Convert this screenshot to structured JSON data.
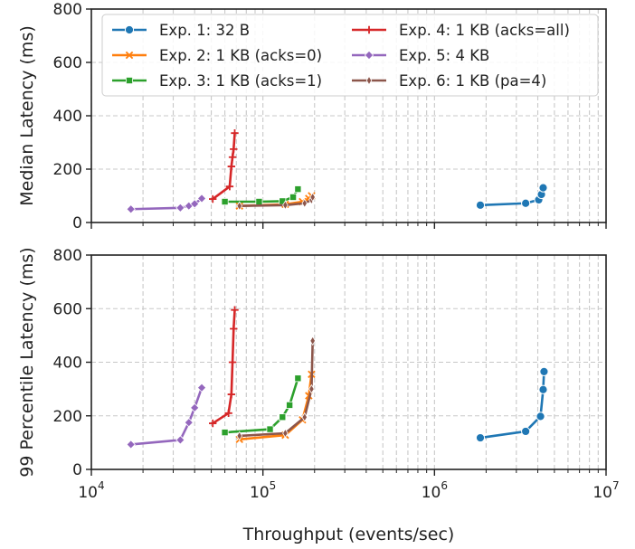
{
  "chart_data": {
    "type": "line",
    "xscale": "log",
    "xlim": [
      10000,
      10000000
    ],
    "xticks": [
      {
        "base": "10",
        "exp": "4"
      },
      {
        "base": "10",
        "exp": "5"
      },
      {
        "base": "10",
        "exp": "6"
      },
      {
        "base": "10",
        "exp": "7"
      }
    ],
    "xlabel": "Throughput (events/sec)",
    "grid": true,
    "legend": {
      "location": "top",
      "columns": 2
    },
    "series": [
      {
        "name": "Exp. 1: 32 B",
        "color": "#1f77b4",
        "marker": "circle"
      },
      {
        "name": "Exp. 2: 1 KB (acks=0)",
        "color": "#ff7f0e",
        "marker": "x"
      },
      {
        "name": "Exp. 3: 1 KB (acks=1)",
        "color": "#2ca02c",
        "marker": "square"
      },
      {
        "name": "Exp. 4: 1 KB (acks=all)",
        "color": "#d62728",
        "marker": "plus"
      },
      {
        "name": "Exp. 5: 4 KB",
        "color": "#9467bd",
        "marker": "diamond"
      },
      {
        "name": "Exp. 6: 1 KB (pa=4)",
        "color": "#8c564b",
        "marker": "thin_diamond"
      }
    ],
    "panels": [
      {
        "ylabel": "Median Latency (ms)",
        "ylim": [
          0,
          800
        ],
        "yticks": [
          "0",
          "200",
          "400",
          "600",
          "800"
        ],
        "series_data": [
          {
            "x": [
              1850000,
              3400000,
              4050000,
              4200000,
              4300000
            ],
            "y": [
              65,
              72,
              85,
              105,
              130
            ]
          },
          {
            "x": [
              73000,
              135000,
              170000,
              185000,
              192000
            ],
            "y": [
              62,
              68,
              78,
              90,
              100
            ]
          },
          {
            "x": [
              60000,
              95000,
              130000,
              150000,
              160000
            ],
            "y": [
              78,
              78,
              80,
              95,
              125
            ]
          },
          {
            "x": [
              51000,
              64000,
              65500,
              66500,
              67500,
              68500
            ],
            "y": [
              88,
              135,
              210,
              245,
              275,
              335
            ]
          },
          {
            "x": [
              17000,
              33000,
              37000,
              40000,
              44000
            ],
            "y": [
              50,
              55,
              62,
              70,
              90
            ]
          },
          {
            "x": [
              73000,
              135000,
              175000,
              192000,
              195000
            ],
            "y": [
              62,
              65,
              72,
              85,
              95
            ]
          }
        ]
      },
      {
        "ylabel": "99 Percentile Latency (ms)",
        "ylim": [
          0,
          800
        ],
        "yticks": [
          "0",
          "200",
          "400",
          "600",
          "800"
        ],
        "series_data": [
          {
            "x": [
              1850000,
              3400000,
              4150000,
              4300000,
              4350000
            ],
            "y": [
              118,
              142,
              198,
              298,
              365
            ]
          },
          {
            "x": [
              73000,
              135000,
              170000,
              185000,
              192000
            ],
            "y": [
              112,
              128,
              185,
              275,
              355
            ]
          },
          {
            "x": [
              60000,
              110000,
              130000,
              143000,
              160000
            ],
            "y": [
              138,
              150,
              195,
              240,
              340
            ]
          },
          {
            "x": [
              51000,
              63000,
              65500,
              66500,
              67500,
              68500
            ],
            "y": [
              172,
              210,
              280,
              400,
              525,
              595
            ]
          },
          {
            "x": [
              17000,
              33000,
              37000,
              40000,
              44000
            ],
            "y": [
              93,
              110,
              175,
              230,
              305
            ]
          },
          {
            "x": [
              73000,
              135000,
              175000,
              192000,
              195000
            ],
            "y": [
              125,
              135,
              195,
              300,
              480
            ]
          }
        ]
      }
    ]
  }
}
